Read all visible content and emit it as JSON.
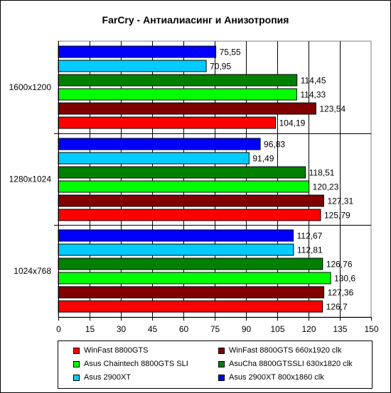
{
  "chart_data": {
    "type": "bar",
    "orientation": "horizontal",
    "title": "FarCry - Антиалиасинг и Анизотропия",
    "xlabel": "",
    "ylabel": "",
    "xlim": [
      0,
      150
    ],
    "xticks": [
      "0",
      "15",
      "30",
      "45",
      "60",
      "75",
      "90",
      "105",
      "120",
      "135",
      "150"
    ],
    "grid": "vertical",
    "legend_position": "bottom",
    "categories": [
      "1600x1200",
      "1280x1024",
      "1024x768"
    ],
    "series": [
      {
        "name": "WinFast 8800GTS",
        "color": "#ff0000",
        "values": [
          104.19,
          125.79,
          126.7
        ],
        "labels": [
          "104,19",
          "125,79",
          "126,7"
        ]
      },
      {
        "name": "WinFast 8800GTS 660x1920 clk",
        "color": "#800000",
        "values": [
          123.54,
          127.31,
          127.36
        ],
        "labels": [
          "123,54",
          "127,31",
          "127,36"
        ]
      },
      {
        "name": "Asus Chaintech 8800GTS SLI",
        "color": "#00ff00",
        "values": [
          114.33,
          120.23,
          130.6
        ],
        "labels": [
          "114,33",
          "120,23",
          "130,6"
        ]
      },
      {
        "name": "AsuCha 8800GTSSLI 630x1820 clk",
        "color": "#008000",
        "values": [
          114.45,
          118.51,
          126.76
        ],
        "labels": [
          "114,45",
          "118,51",
          "126,76"
        ]
      },
      {
        "name": "Asus 2900XT",
        "color": "#00ccff",
        "values": [
          70.95,
          91.49,
          112.81
        ],
        "labels": [
          "70,95",
          "91,49",
          "112,81"
        ]
      },
      {
        "name": "Asus 2900XT 800x1860 clk",
        "color": "#0000ff",
        "values": [
          75.55,
          96.83,
          112.67
        ],
        "labels": [
          "75,55",
          "96,83",
          "112,67"
        ]
      }
    ]
  }
}
